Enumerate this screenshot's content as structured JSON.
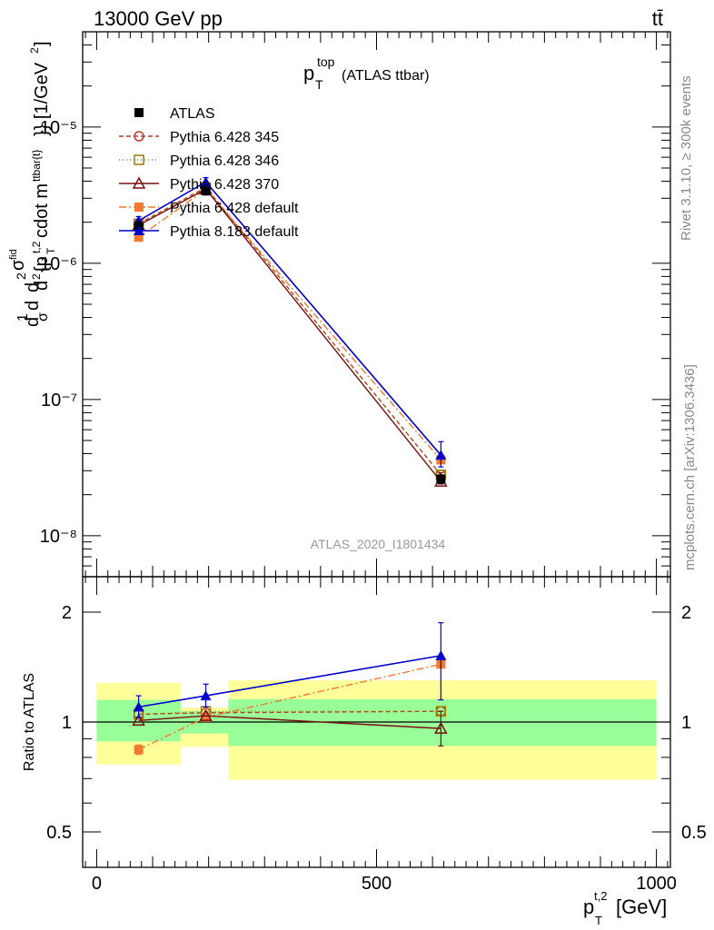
{
  "header": {
    "energy_label": "13000 GeV pp",
    "process_label": "tt̄"
  },
  "title": {
    "main": "p",
    "sub": "T",
    "sup": "top",
    "tail": "(ATLAS ttbar)"
  },
  "side_labels": {
    "rivet": "Rivet 3.1.10, ≥ 300k events",
    "mcplots": "mcplots.cern.ch [arXiv:1306.3436]"
  },
  "watermark": "ATLAS_2020_I1801434",
  "chart_data": [
    {
      "type": "line",
      "scale": "log",
      "title": "p_T^top (ATLAS ttbar)",
      "ylabel": "d²σ/(d p_T^{t,2} d m^{ttbar}) [1/GeV²] (normalized)",
      "xlabel": "p_T^{t,2} [GeV]",
      "xlim": [
        -25,
        1025
      ],
      "ylim": [
        5e-09,
        5e-05
      ],
      "y_ticks": [
        {
          "value": 1e-08,
          "label": "10⁻⁸"
        },
        {
          "value": 1e-07,
          "label": "10⁻⁷"
        },
        {
          "value": 1e-06,
          "label": "10⁻⁶"
        },
        {
          "value": 1e-05,
          "label": "10⁻⁵"
        }
      ],
      "bins": [
        {
          "x": 75,
          "low": 0,
          "high": 150
        },
        {
          "x": 195,
          "low": 150,
          "high": 235
        },
        {
          "x": 615,
          "low": 235,
          "high": 1000
        }
      ],
      "series": [
        {
          "name": "ATLAS",
          "marker": "square-filled",
          "color": "#000000",
          "dash": "none",
          "values": [
            1.85e-06,
            3.4e-06,
            2.6e-08
          ],
          "err_low": [
            1.6e-07,
            2.3e-07,
            2e-09
          ],
          "err_high": [
            1.6e-07,
            2.3e-07,
            2e-09
          ]
        },
        {
          "name": "Pythia 6.428 345",
          "marker": "circle-open",
          "color": "#c0392b",
          "dash": "5,3",
          "values": [
            1.95e-06,
            3.6e-06,
            2.8e-08
          ],
          "err_low": [
            0,
            0,
            0
          ],
          "err_high": [
            0,
            0,
            0
          ]
        },
        {
          "name": "Pythia 6.428 346",
          "marker": "square-open",
          "color": "#9a7d0a",
          "dash": "1,3",
          "values": [
            1.95e-06,
            3.6e-06,
            2.8e-08
          ],
          "err_low": [
            0,
            0,
            0
          ],
          "err_high": [
            0,
            0,
            0
          ]
        },
        {
          "name": "Pythia 6.428 370",
          "marker": "triangle-open",
          "color": "#7b1010",
          "dash": "none",
          "values": [
            1.9e-06,
            3.5e-06,
            2.5e-08
          ],
          "err_low": [
            0,
            0,
            0
          ],
          "err_high": [
            3e-09,
            0,
            4e-09
          ]
        },
        {
          "name": "Pythia 6.428 default",
          "marker": "square-filled",
          "color": "#f07a30",
          "dash": "8,3,2,3",
          "values": [
            1.55e-06,
            3.5e-06,
            3.6e-08
          ],
          "err_low": [
            0,
            0,
            0
          ],
          "err_high": [
            0,
            0,
            0
          ]
        },
        {
          "name": "Pythia 8.183 default",
          "marker": "triangle-filled",
          "color": "#0000cc",
          "dash": "none",
          "values": [
            2.05e-06,
            3.95e-06,
            3.9e-08
          ],
          "err_low": [
            1.5e-07,
            3e-07,
            7e-09
          ],
          "err_high": [
            1.5e-07,
            3e-07,
            1e-08
          ]
        }
      ]
    },
    {
      "type": "line",
      "scale": "log",
      "title": "",
      "ylabel": "Ratio to ATLAS",
      "xlabel": "p_T^{t,2} [GeV]",
      "xlim": [
        -25,
        1025
      ],
      "ylim": [
        0.4,
        2.5
      ],
      "y_ticks": [
        {
          "value": 0.5,
          "label": "0.5"
        },
        {
          "value": 1,
          "label": "1"
        },
        {
          "value": 2,
          "label": "2"
        }
      ],
      "x_ticks": [
        {
          "value": 0,
          "label": "0"
        },
        {
          "value": 500,
          "label": "500"
        },
        {
          "value": 1000,
          "label": "1000"
        }
      ],
      "bands": [
        {
          "low": 0,
          "high": 150,
          "green": [
            0.885,
            1.15
          ],
          "yellow": [
            0.765,
            1.28
          ]
        },
        {
          "low": 150,
          "high": 235,
          "green": [
            0.93,
            1.07
          ],
          "yellow": [
            0.855,
            1.095
          ]
        },
        {
          "low": 235,
          "high": 1000,
          "green": [
            0.86,
            1.155
          ],
          "yellow": [
            0.695,
            1.3
          ]
        }
      ],
      "reference": 1,
      "series": [
        {
          "name": "Pythia 6.428 345",
          "values": [
            1.05,
            1.06,
            1.07
          ],
          "err_low": [
            0,
            0,
            0
          ],
          "err_high": [
            0,
            0,
            0
          ]
        },
        {
          "name": "Pythia 6.428 346",
          "values": [
            1.05,
            1.07,
            1.07
          ],
          "err_low": [
            0,
            0,
            0
          ],
          "err_high": [
            0,
            0,
            0
          ]
        },
        {
          "name": "Pythia 6.428 370",
          "values": [
            1.01,
            1.04,
            0.96
          ],
          "err_low": [
            0,
            0,
            0.1
          ],
          "err_high": [
            0,
            0,
            0.11
          ]
        },
        {
          "name": "Pythia 6.428 default",
          "values": [
            0.84,
            1.03,
            1.44
          ],
          "err_low": [
            0.025,
            0,
            0
          ],
          "err_high": [
            0.025,
            0,
            0
          ]
        },
        {
          "name": "Pythia 8.183 default",
          "values": [
            1.1,
            1.18,
            1.52
          ],
          "err_low": [
            0.07,
            0.08,
            0.37
          ],
          "err_high": [
            0.08,
            0.09,
            0.35
          ]
        }
      ]
    }
  ]
}
